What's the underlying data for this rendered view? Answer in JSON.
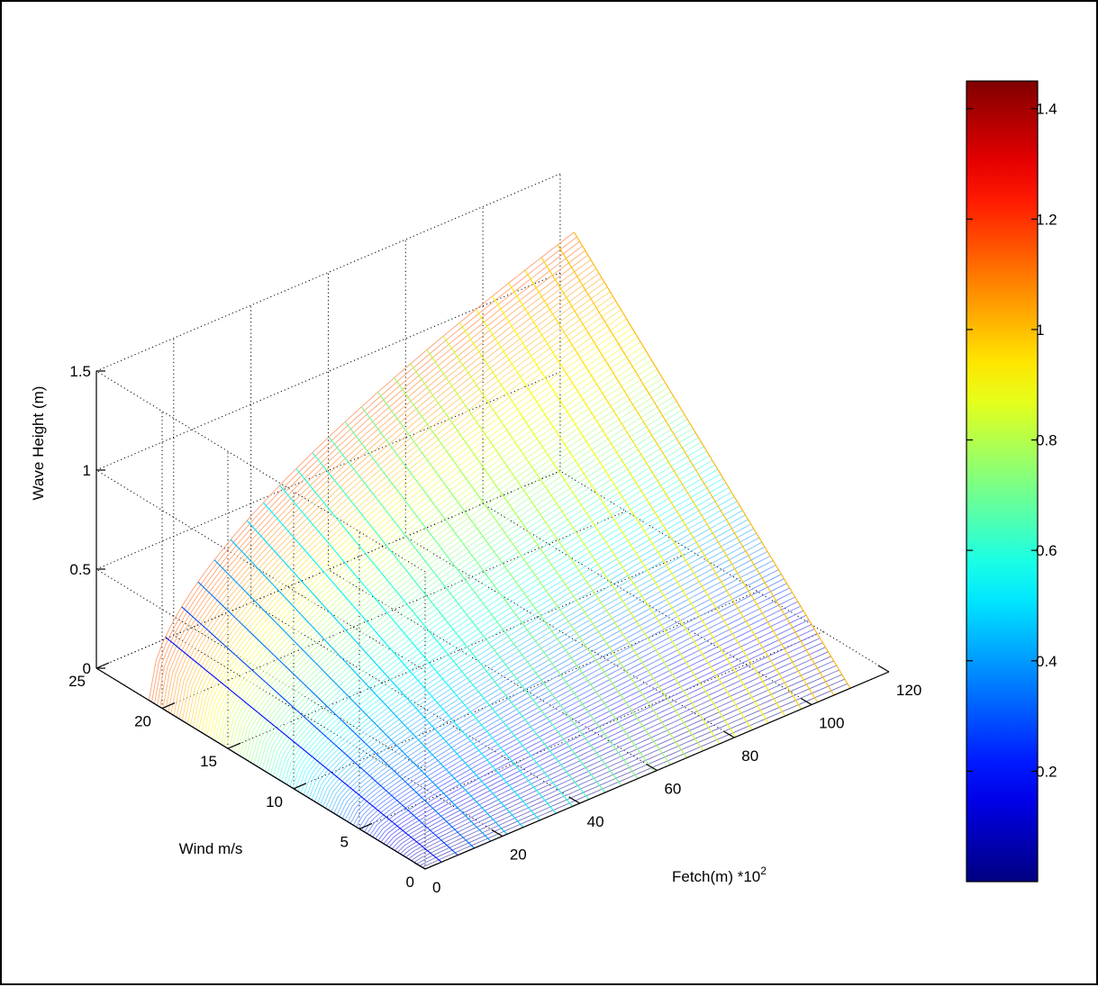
{
  "chart_data": {
    "type": "surface3d",
    "title": "",
    "x_axis": {
      "label_text": "Fetch(m) *10",
      "label_sup": "2",
      "range": [
        0,
        120
      ],
      "ticks": [
        "0",
        "20",
        "40",
        "60",
        "80",
        "100",
        "120"
      ]
    },
    "y_axis": {
      "label": "Wind m/s",
      "range": [
        0,
        25
      ],
      "ticks": [
        "0",
        "5",
        "10",
        "15",
        "20",
        "25"
      ]
    },
    "z_axis": {
      "label": "Wave Height (m)",
      "range": [
        0,
        1.5
      ],
      "ticks": [
        "0",
        "0.5",
        "1",
        "1.5"
      ]
    },
    "surface": {
      "fetch_range": [
        0,
        110
      ],
      "wind_range": [
        0,
        21
      ],
      "z_max": 1.45,
      "fetch_shape_exponent": 0.5,
      "wind_shape_exponent": 1.0,
      "colormap": "jet",
      "face_color": "none",
      "edge_color": "interpolated"
    },
    "colorbar": {
      "ticks": [
        "0.2",
        "0.4",
        "0.6",
        "0.8",
        "1",
        "1.2",
        "1.4"
      ],
      "range": [
        0,
        1.45
      ],
      "colormap": "jet"
    },
    "grid": true,
    "box": "dotted"
  }
}
